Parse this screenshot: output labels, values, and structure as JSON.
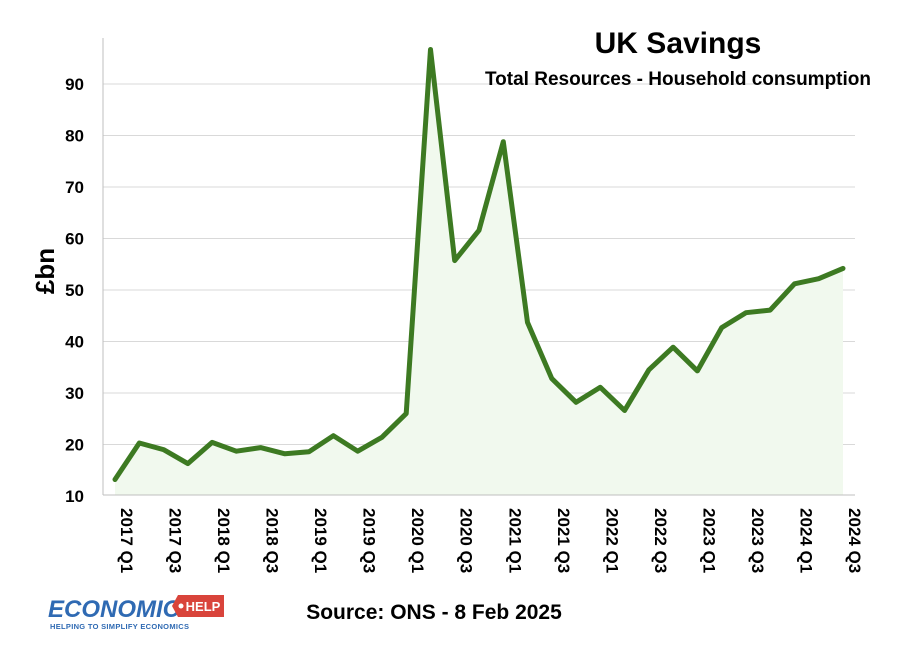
{
  "chart_data": {
    "type": "area",
    "title": "UK Savings",
    "subtitle": "Total Resources - Household consumption",
    "ylabel": "£bn",
    "xlabel": "",
    "ylim": [
      10,
      98
    ],
    "yticks": [
      10,
      20,
      30,
      40,
      50,
      60,
      70,
      80,
      90
    ],
    "grid": true,
    "x": [
      "2017 Q1",
      "2017 Q2",
      "2017 Q3",
      "2017 Q4",
      "2018 Q1",
      "2018 Q2",
      "2018 Q3",
      "2018 Q4",
      "2019 Q1",
      "2019 Q2",
      "2019 Q3",
      "2019 Q4",
      "2020 Q1",
      "2020 Q2",
      "2020 Q3",
      "2020 Q4",
      "2021 Q1",
      "2021 Q2",
      "2021 Q3",
      "2021 Q4",
      "2022 Q1",
      "2022 Q2",
      "2022 Q3",
      "2022 Q4",
      "2023 Q1",
      "2023 Q2",
      "2023 Q3",
      "2023 Q4",
      "2024 Q1",
      "2024 Q2",
      "2024 Q3"
    ],
    "xtick_labels": [
      "2017 Q1",
      "2017 Q3",
      "2018 Q1",
      "2018 Q3",
      "2019 Q1",
      "2019 Q3",
      "2020 Q1",
      "2020 Q3",
      "2021 Q1",
      "2021 Q3",
      "2022 Q1",
      "2022 Q3",
      "2023 Q1",
      "2023 Q3",
      "2024 Q1",
      "2024 Q3"
    ],
    "series": [
      {
        "values": [
          13.2,
          20.3,
          19.0,
          16.3,
          20.4,
          18.7,
          19.4,
          18.2,
          18.6,
          21.7,
          18.7,
          21.4,
          26.0,
          96.7,
          55.7,
          61.6,
          78.8,
          43.7,
          32.8,
          28.2,
          31.1,
          26.6,
          34.5,
          38.9,
          34.3,
          42.7,
          45.6,
          46.1,
          51.2,
          52.2,
          54.2
        ],
        "color": "#3d7a22"
      }
    ],
    "area_fill_color": "#f1f9ee",
    "grid_color": "#d9d9d9"
  },
  "footer": {
    "source": "Source: ONS - 8 Feb 2025"
  },
  "logo": {
    "main": "ECONOMICS",
    "badge": "HELP",
    "tagline": "HELPING TO SIMPLIFY ECONOMICS",
    "main_color": "#2f6ab3",
    "badge_color": "#d9443b"
  }
}
